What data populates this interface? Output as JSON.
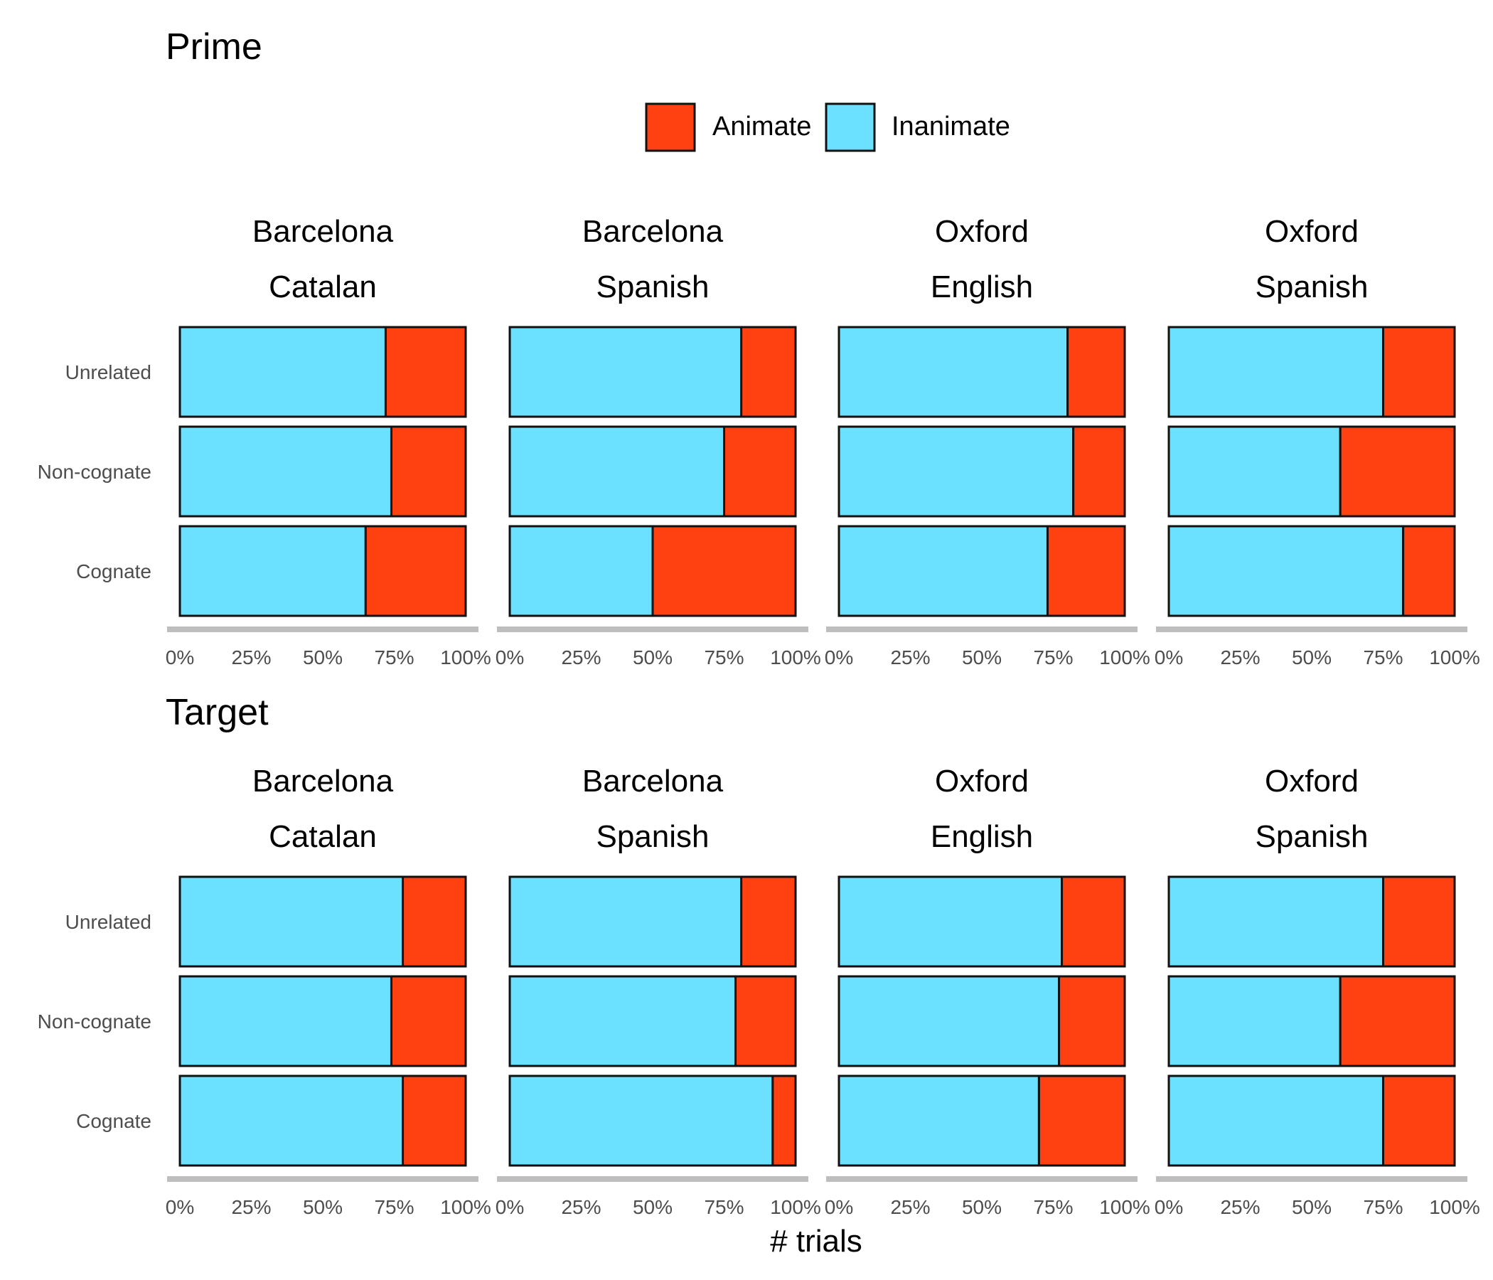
{
  "colors": {
    "animate": "#FF4112",
    "inanimate": "#6CE0FF",
    "stroke": "#111111",
    "axis_line": "#BEBEBE",
    "tick_text": "#4D4D4D",
    "text": "#000000"
  },
  "legend": {
    "position": "top-center",
    "items": [
      {
        "key": "animate",
        "label": "Animate"
      },
      {
        "key": "inanimate",
        "label": "Inanimate"
      }
    ]
  },
  "x_axis_title": "# trials",
  "chart_data": [
    {
      "type": "bar",
      "stacked": "percent",
      "orientation": "horizontal",
      "title": "Prime",
      "categories": [
        "Unrelated",
        "Non-cognate",
        "Cognate"
      ],
      "x_ticks": [
        "0%",
        "25%",
        "50%",
        "75%",
        "100%"
      ],
      "xlim": [
        0,
        1
      ],
      "grid": false,
      "facets": [
        {
          "line1": "Barcelona",
          "line2": "Catalan",
          "inanimate": [
            0.72,
            0.74,
            0.65
          ]
        },
        {
          "line1": "Barcelona",
          "line2": "Spanish",
          "inanimate": [
            0.81,
            0.75,
            0.5
          ]
        },
        {
          "line1": "Oxford",
          "line2": "English",
          "inanimate": [
            0.8,
            0.82,
            0.73
          ]
        },
        {
          "line1": "Oxford",
          "line2": "Spanish",
          "inanimate": [
            0.75,
            0.6,
            0.82
          ]
        }
      ]
    },
    {
      "type": "bar",
      "stacked": "percent",
      "orientation": "horizontal",
      "title": "Target",
      "categories": [
        "Unrelated",
        "Non-cognate",
        "Cognate"
      ],
      "x_ticks": [
        "0%",
        "25%",
        "50%",
        "75%",
        "100%"
      ],
      "xlim": [
        0,
        1
      ],
      "grid": false,
      "facets": [
        {
          "line1": "Barcelona",
          "line2": "Catalan",
          "inanimate": [
            0.78,
            0.74,
            0.78
          ]
        },
        {
          "line1": "Barcelona",
          "line2": "Spanish",
          "inanimate": [
            0.81,
            0.79,
            0.92
          ]
        },
        {
          "line1": "Oxford",
          "line2": "English",
          "inanimate": [
            0.78,
            0.77,
            0.7
          ]
        },
        {
          "line1": "Oxford",
          "line2": "Spanish",
          "inanimate": [
            0.75,
            0.6,
            0.75
          ]
        }
      ]
    }
  ]
}
